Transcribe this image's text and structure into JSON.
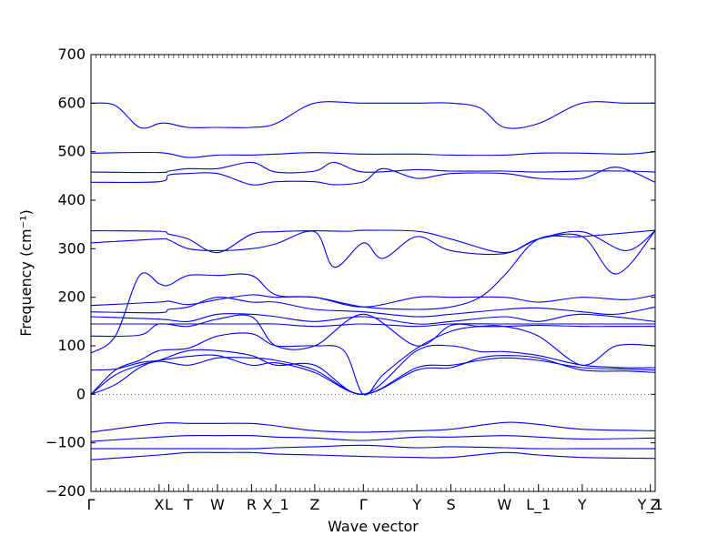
{
  "chart_data": {
    "type": "line",
    "title": "",
    "xlabel": "Wave vector",
    "ylabel": "Frequency (cm⁻¹)",
    "ylim": [
      -200,
      700
    ],
    "yticks": [
      -200,
      -100,
      0,
      100,
      200,
      300,
      400,
      500,
      600,
      700
    ],
    "xlim": [
      0,
      11.6
    ],
    "xticks": [
      {
        "x": 0,
        "label": "Γ"
      },
      {
        "x": 1.4,
        "label": "X"
      },
      {
        "x": 1.6,
        "label": "L"
      },
      {
        "x": 2.0,
        "label": "T"
      },
      {
        "x": 2.6,
        "label": "W"
      },
      {
        "x": 3.3,
        "label": "R"
      },
      {
        "x": 3.8,
        "label": "X_1"
      },
      {
        "x": 4.6,
        "label": "Z"
      },
      {
        "x": 5.6,
        "label": "Γ"
      },
      {
        "x": 6.7,
        "label": "Y"
      },
      {
        "x": 7.4,
        "label": "S"
      },
      {
        "x": 8.5,
        "label": "W"
      },
      {
        "x": 9.2,
        "label": "L_1"
      },
      {
        "x": 10.1,
        "label": "Y"
      },
      {
        "x": 11.5,
        "label": "Y_1"
      },
      {
        "x": 11.6,
        "label": "Z"
      }
    ],
    "zero_line": true,
    "line_color": "#0000ff",
    "series": [
      {
        "x": [
          0,
          0.5,
          1.0,
          1.4,
          1.6,
          2.0,
          2.6,
          3.3,
          3.8,
          4.6,
          5.6,
          6.7,
          7.4,
          8.0,
          8.5,
          9.2,
          10.1,
          11.0,
          11.6
        ],
        "y": [
          600,
          595,
          550,
          558,
          558,
          550,
          550,
          550,
          558,
          600,
          600,
          600,
          600,
          590,
          550,
          558,
          600,
          600,
          600
        ]
      },
      {
        "x": [
          0,
          1.4,
          2.0,
          2.6,
          3.3,
          3.8,
          4.6,
          5.6,
          6.7,
          7.4,
          8.5,
          9.2,
          10.1,
          11.0,
          11.6
        ],
        "y": [
          497,
          498,
          488,
          493,
          493,
          495,
          498,
          495,
          495,
          493,
          493,
          497,
          497,
          495,
          500
        ]
      },
      {
        "x": [
          0,
          1.4,
          1.6,
          2.0,
          2.6,
          3.3,
          3.8,
          4.6,
          5.0,
          5.6,
          6.7,
          7.4,
          8.5,
          9.2,
          10.1,
          11.0,
          11.6
        ],
        "y": [
          458,
          457,
          460,
          465,
          465,
          478,
          458,
          460,
          478,
          458,
          463,
          460,
          460,
          458,
          460,
          460,
          458
        ]
      },
      {
        "x": [
          0,
          1.4,
          1.6,
          2.0,
          2.6,
          3.3,
          3.8,
          4.6,
          5.0,
          5.6,
          6.0,
          6.7,
          7.4,
          8.5,
          9.2,
          10.1,
          10.8,
          11.6
        ],
        "y": [
          437,
          438,
          452,
          455,
          455,
          432,
          438,
          438,
          432,
          438,
          465,
          445,
          455,
          455,
          445,
          445,
          468,
          437
        ]
      },
      {
        "x": [
          0,
          1.4,
          1.6,
          2.0,
          2.6,
          3.3,
          3.8,
          4.6,
          5.3,
          5.6,
          6.7,
          7.4,
          8.5,
          9.2,
          10.1,
          11.0,
          11.6
        ],
        "y": [
          337,
          336,
          330,
          320,
          292,
          330,
          335,
          337,
          336,
          338,
          336,
          320,
          292,
          320,
          335,
          296,
          337
        ]
      },
      {
        "x": [
          0,
          1.4,
          1.6,
          2.0,
          2.6,
          3.3,
          3.8,
          4.6,
          5.0,
          5.6,
          6.0,
          6.7,
          7.4,
          8.5,
          9.2,
          10.1,
          10.8,
          11.6
        ],
        "y": [
          312,
          320,
          318,
          300,
          296,
          300,
          310,
          335,
          262,
          312,
          280,
          325,
          296,
          290,
          320,
          325,
          248,
          337
        ]
      },
      {
        "x": [
          0,
          0.5,
          1.0,
          1.4,
          1.6,
          2.0,
          2.6,
          3.3,
          3.8,
          4.6,
          5.6,
          6.7,
          7.4,
          8.5,
          9.2,
          10.1,
          11.0,
          11.6
        ],
        "y": [
          85,
          120,
          245,
          228,
          225,
          245,
          245,
          245,
          205,
          200,
          180,
          200,
          200,
          200,
          190,
          200,
          195,
          205
        ]
      },
      {
        "x": [
          0,
          1.4,
          1.6,
          2.0,
          2.6,
          3.3,
          3.8,
          4.6,
          5.6,
          6.7,
          7.4,
          8.0,
          8.5,
          9.2,
          10.1,
          11.6
        ],
        "y": [
          183,
          190,
          192,
          185,
          195,
          205,
          200,
          200,
          180,
          175,
          180,
          200,
          245,
          320,
          325,
          338
        ]
      },
      {
        "x": [
          0,
          1.4,
          1.6,
          2.0,
          2.6,
          3.3,
          3.8,
          4.6,
          5.6,
          6.7,
          7.4,
          8.5,
          9.2,
          10.1,
          10.8,
          11.6
        ],
        "y": [
          170,
          168,
          175,
          180,
          200,
          190,
          190,
          175,
          170,
          160,
          165,
          175,
          178,
          170,
          165,
          180
        ]
      },
      {
        "x": [
          0,
          1.4,
          2.0,
          2.6,
          3.3,
          3.8,
          4.6,
          5.6,
          6.7,
          7.4,
          8.5,
          9.2,
          10.1,
          11.6
        ],
        "y": [
          160,
          155,
          150,
          165,
          165,
          160,
          150,
          160,
          145,
          150,
          160,
          150,
          165,
          150
        ]
      },
      {
        "x": [
          0,
          1.4,
          2.0,
          2.6,
          3.3,
          3.8,
          4.6,
          5.6,
          6.7,
          7.4,
          8.5,
          9.2,
          10.1,
          11.6
        ],
        "y": [
          145,
          145,
          145,
          145,
          145,
          145,
          140,
          145,
          140,
          145,
          145,
          145,
          145,
          145
        ]
      },
      {
        "x": [
          0,
          1.0,
          1.4,
          2.0,
          2.6,
          3.3,
          3.8,
          4.6,
          5.6,
          6.7,
          7.4,
          8.0,
          8.5,
          9.2,
          10.1,
          11.0,
          11.6
        ],
        "y": [
          120,
          122,
          145,
          140,
          155,
          160,
          100,
          100,
          165,
          100,
          142,
          140,
          140,
          142,
          140,
          140,
          140
        ]
      },
      {
        "x": [
          0,
          0.5,
          1.0,
          1.4,
          2.0,
          2.6,
          3.3,
          3.8,
          4.6,
          5.2,
          5.6,
          6.0,
          6.7,
          7.4,
          8.0,
          8.5,
          9.2,
          10.1,
          10.8,
          11.6
        ],
        "y": [
          0,
          50,
          70,
          90,
          95,
          120,
          125,
          100,
          100,
          90,
          0,
          40,
          95,
          130,
          140,
          140,
          120,
          60,
          100,
          100
        ]
      },
      {
        "x": [
          0,
          0.5,
          1.0,
          1.4,
          2.0,
          2.6,
          3.3,
          3.8,
          4.6,
          5.6,
          6.7,
          7.4,
          8.0,
          8.5,
          9.2,
          10.1,
          11.0,
          11.6
        ],
        "y": [
          0,
          40,
          60,
          70,
          90,
          90,
          80,
          60,
          60,
          0,
          90,
          100,
          88,
          88,
          80,
          60,
          55,
          55
        ]
      },
      {
        "x": [
          0,
          0.5,
          1.0,
          1.4,
          2.0,
          2.6,
          3.3,
          3.8,
          4.6,
          5.6,
          6.7,
          7.4,
          8.0,
          8.5,
          9.2,
          10.1,
          11.0,
          11.6
        ],
        "y": [
          0,
          20,
          55,
          68,
          60,
          75,
          75,
          70,
          50,
          0,
          55,
          60,
          70,
          75,
          70,
          55,
          52,
          50
        ]
      },
      {
        "x": [
          0,
          0.5,
          1.0,
          1.4,
          2.0,
          2.6,
          3.3,
          3.8,
          4.6,
          5.6,
          6.7,
          7.4,
          8.0,
          8.5,
          9.2,
          10.1,
          11.0,
          11.6
        ],
        "y": [
          50,
          52,
          65,
          70,
          78,
          80,
          60,
          65,
          45,
          0,
          50,
          55,
          75,
          80,
          75,
          50,
          48,
          45
        ]
      },
      {
        "x": [
          0,
          1.4,
          2.0,
          2.6,
          3.3,
          3.8,
          4.6,
          5.6,
          6.7,
          7.4,
          8.5,
          9.2,
          10.1,
          11.6
        ],
        "y": [
          -78,
          -60,
          -60,
          -60,
          -60,
          -65,
          -75,
          -78,
          -75,
          -72,
          -58,
          -62,
          -72,
          -75
        ]
      },
      {
        "x": [
          0,
          1.4,
          2.0,
          2.6,
          3.3,
          3.8,
          4.6,
          5.6,
          6.7,
          7.4,
          8.5,
          9.2,
          10.1,
          11.6
        ],
        "y": [
          -97,
          -88,
          -85,
          -85,
          -85,
          -88,
          -90,
          -95,
          -88,
          -88,
          -85,
          -88,
          -92,
          -90
        ]
      },
      {
        "x": [
          0,
          1.4,
          2.0,
          2.6,
          3.3,
          3.8,
          4.6,
          5.6,
          6.7,
          7.4,
          8.5,
          9.2,
          10.1,
          11.6
        ],
        "y": [
          -112,
          -112,
          -112,
          -112,
          -112,
          -110,
          -108,
          -105,
          -110,
          -108,
          -110,
          -112,
          -112,
          -112
        ]
      },
      {
        "x": [
          0,
          1.4,
          2.0,
          2.6,
          3.3,
          3.8,
          4.6,
          5.6,
          6.7,
          7.4,
          8.5,
          9.2,
          10.1,
          11.6
        ],
        "y": [
          -135,
          -125,
          -120,
          -120,
          -120,
          -123,
          -125,
          -128,
          -130,
          -130,
          -120,
          -125,
          -130,
          -132
        ]
      }
    ]
  }
}
